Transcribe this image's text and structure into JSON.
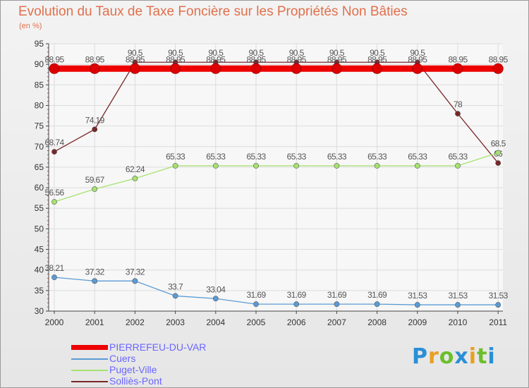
{
  "chart_data": {
    "type": "line",
    "title": "Evolution du Taux de Taxe Foncière sur les Propriétés Non Bâties",
    "ylabel": "(en %)",
    "ylim": [
      30,
      95
    ],
    "yticks": [
      30,
      35,
      40,
      45,
      50,
      55,
      60,
      65,
      70,
      75,
      80,
      85,
      90,
      95
    ],
    "categories": [
      "2000",
      "2001",
      "2002",
      "2003",
      "2004",
      "2005",
      "2006",
      "2007",
      "2008",
      "2009",
      "2010",
      "2011"
    ],
    "series": [
      {
        "name": "Solliès-Pont",
        "color": "#7a2628",
        "labels": [
          "68.74",
          "74.19",
          "90.5",
          "90.5",
          "90.5",
          "90.5",
          "90.5",
          "90.5",
          "90.5",
          "90.5",
          "78",
          "66"
        ],
        "values": [
          68.74,
          74.19,
          90.5,
          90.5,
          90.5,
          90.5,
          90.5,
          90.5,
          90.5,
          90.5,
          78,
          66
        ]
      },
      {
        "name": "Puget-Ville",
        "color": "#a6e36e",
        "labels": [
          "56.56",
          "59.67",
          "62.24",
          "65.33",
          "65.33",
          "65.33",
          "65.33",
          "65.33",
          "65.33",
          "65.33",
          "65.33",
          "68.5"
        ],
        "values": [
          56.56,
          59.67,
          62.24,
          65.33,
          65.33,
          65.33,
          65.33,
          65.33,
          65.33,
          65.33,
          65.33,
          68.5
        ]
      },
      {
        "name": "Cuers",
        "color": "#5b9bd5",
        "labels": [
          "38.21",
          "37.32",
          "37.32",
          "33.7",
          "33.04",
          "31.69",
          "31.69",
          "31.69",
          "31.69",
          "31.53",
          "31.53",
          "31.53"
        ],
        "values": [
          38.21,
          37.32,
          37.32,
          33.7,
          33.04,
          31.69,
          31.69,
          31.69,
          31.69,
          31.53,
          31.53,
          31.53
        ]
      },
      {
        "name": "PIERREFEU-DU-VAR",
        "color": "#ee0000",
        "labels": [
          "88.95",
          "88.95",
          "88.95",
          "88.95",
          "88.95",
          "88.95",
          "88.95",
          "88.95",
          "88.95",
          "88.95",
          "88.95",
          "88.95"
        ],
        "values": [
          88.95,
          88.95,
          88.95,
          88.95,
          88.95,
          88.95,
          88.95,
          88.95,
          88.95,
          88.95,
          88.95,
          88.95
        ]
      }
    ]
  },
  "legend": [
    {
      "label": "PIERREFEU-DU-VAR",
      "color": "#ee0000"
    },
    {
      "label": "Cuers",
      "color": "#5b9bd5"
    },
    {
      "label": "Puget-Ville",
      "color": "#a6e36e"
    },
    {
      "label": "Solliès-Pont",
      "color": "#7a2628"
    }
  ],
  "logo": {
    "text": "Proxiti",
    "letters": [
      "P",
      "r",
      "o",
      "x",
      "i",
      "t",
      "i"
    ],
    "colors": [
      "#2a8fd6",
      "#e8a020",
      "#6cbf2c",
      "#2a8fd6",
      "#e8a020",
      "#6cbf2c",
      "#2a8fd6"
    ]
  }
}
